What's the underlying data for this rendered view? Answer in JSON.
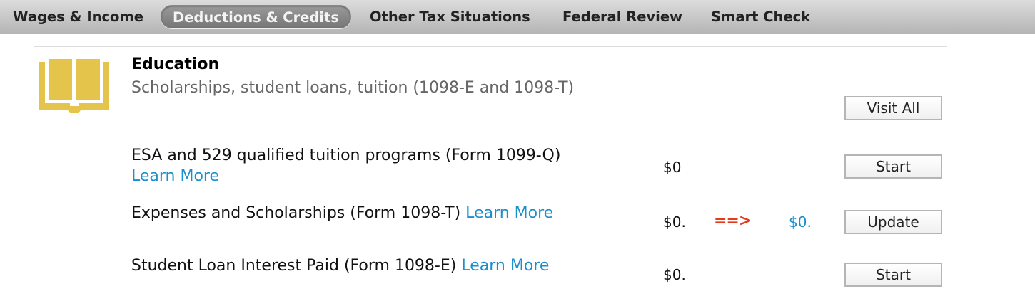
{
  "nav": {
    "tabs": [
      {
        "label": "Wages & Income",
        "active": false
      },
      {
        "label": "Deductions & Credits",
        "active": true
      },
      {
        "label": "Other Tax Situations",
        "active": false
      },
      {
        "label": "Federal Review",
        "active": false
      },
      {
        "label": "Smart Check",
        "active": false
      }
    ]
  },
  "section": {
    "icon": "open-book-icon",
    "icon_color": "#e4c44a",
    "title": "Education",
    "subtitle": "Scholarships, student loans, tuition (1098-E and 1098-T)",
    "visit_all_label": "Visit All"
  },
  "rows": [
    {
      "label": "ESA and 529 qualified tuition programs (Form 1099-Q)",
      "link": "Learn More",
      "amount": "$0",
      "button": "Start"
    },
    {
      "label": "Expenses and Scholarships (Form 1098-T)",
      "link": "Learn More",
      "amount": "$0.",
      "arrow": "==>",
      "new_amount": "$0.",
      "button": "Update"
    },
    {
      "label": "Student Loan Interest Paid (Form 1098-E)",
      "link": "Learn More",
      "amount": "$0.",
      "button": "Start"
    }
  ]
}
